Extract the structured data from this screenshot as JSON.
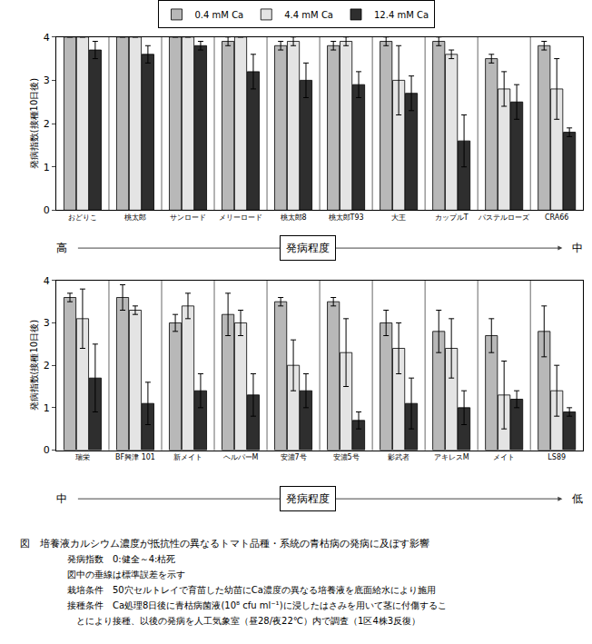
{
  "chart_data": [
    {
      "type": "bar",
      "ylabel": "発病指数(接種10日後)",
      "categories": [
        "おどりこ",
        "桃太郎",
        "サンロード",
        "メリーロード",
        "桃太郎8",
        "桃太郎T93",
        "大王",
        "カップルT",
        "パステルローズ",
        "CRA66"
      ],
      "series": [
        {
          "name": "0.4 mM Ca",
          "color": "#b8b8b8",
          "values": [
            4.0,
            4.0,
            4.0,
            3.9,
            3.8,
            3.8,
            3.9,
            3.9,
            3.5,
            3.8
          ],
          "errors": [
            0,
            0,
            0,
            0.1,
            0.1,
            0.1,
            0.1,
            0.1,
            0.1,
            0.1
          ]
        },
        {
          "name": "4.4 mM Ca",
          "color": "#e4e4e4",
          "values": [
            4.0,
            4.0,
            4.0,
            4.0,
            3.9,
            3.9,
            3.0,
            3.6,
            2.8,
            2.8
          ],
          "errors": [
            0,
            0,
            0,
            0,
            0.1,
            0.1,
            0.8,
            0.1,
            0.4,
            0.7
          ]
        },
        {
          "name": "12.4 mM Ca",
          "color": "#2e2e2e",
          "values": [
            3.7,
            3.6,
            3.8,
            3.2,
            3.0,
            2.9,
            2.7,
            1.6,
            2.5,
            1.8
          ],
          "errors": [
            0.2,
            0.2,
            0.1,
            0.4,
            0.4,
            0.3,
            0.4,
            0.6,
            0.4,
            0.1
          ]
        }
      ],
      "ylim": [
        0,
        4
      ],
      "yticks": [
        0,
        1,
        2,
        3,
        4
      ],
      "legend": "top",
      "annotations": [
        "高",
        "発病程度",
        "中"
      ]
    },
    {
      "type": "bar",
      "ylabel": "発病指数(接種10日後)",
      "categories": [
        "瑞栄",
        "BF興津 101",
        "新メイト",
        "ヘルパーM",
        "安濃7号",
        "安濃5号",
        "影武者",
        "アキレスM",
        "メイト",
        "LS89"
      ],
      "series": [
        {
          "color": "#b8b8b8",
          "values": [
            3.6,
            3.6,
            3.0,
            3.2,
            3.5,
            3.5,
            3.0,
            2.8,
            2.7,
            2.8
          ],
          "errors": [
            0.1,
            0.3,
            0.2,
            0.5,
            0.1,
            0.1,
            0.3,
            0.5,
            0.4,
            0.6
          ]
        },
        {
          "color": "#e4e4e4",
          "values": [
            3.1,
            3.3,
            3.4,
            3.0,
            2.0,
            2.3,
            2.4,
            2.4,
            1.3,
            1.4
          ],
          "errors": [
            0.7,
            0.1,
            0.3,
            0.3,
            0.6,
            0.8,
            0.6,
            0.7,
            0.8,
            0.6
          ]
        },
        {
          "color": "#2e2e2e",
          "values": [
            1.7,
            1.1,
            1.4,
            1.3,
            1.4,
            0.7,
            1.1,
            1.0,
            1.2,
            0.9
          ],
          "errors": [
            0.8,
            0.5,
            0.4,
            0.5,
            0.4,
            0.2,
            0.6,
            0.4,
            0.2,
            0.1
          ]
        }
      ],
      "ylim": [
        0,
        4
      ],
      "yticks": [
        0,
        1,
        2,
        3,
        4
      ],
      "annotations": [
        "中",
        "発病程度",
        "低"
      ]
    }
  ],
  "caption": [
    "図　培養液カルシウム濃度が抵抗性の異なるトマト品種・系統の青枯病の発病に及ぼす影響",
    "発病指数　0:健全～4:枯死",
    "図中の垂線は標準誤差を示す",
    "栽培条件　50穴セルトレイで育苗した幼苗にCa濃度の異なる培養液を底面給水により施用",
    "接種条件　Ca処理8日後に青枯病菌液(10⁸ cfu ml⁻¹)に浸したはさみを用いて茎に付傷するこ",
    "とにより接種、以後の発病を人工気象室（昼28/夜22℃）内で調査（1区4株3反復）"
  ]
}
